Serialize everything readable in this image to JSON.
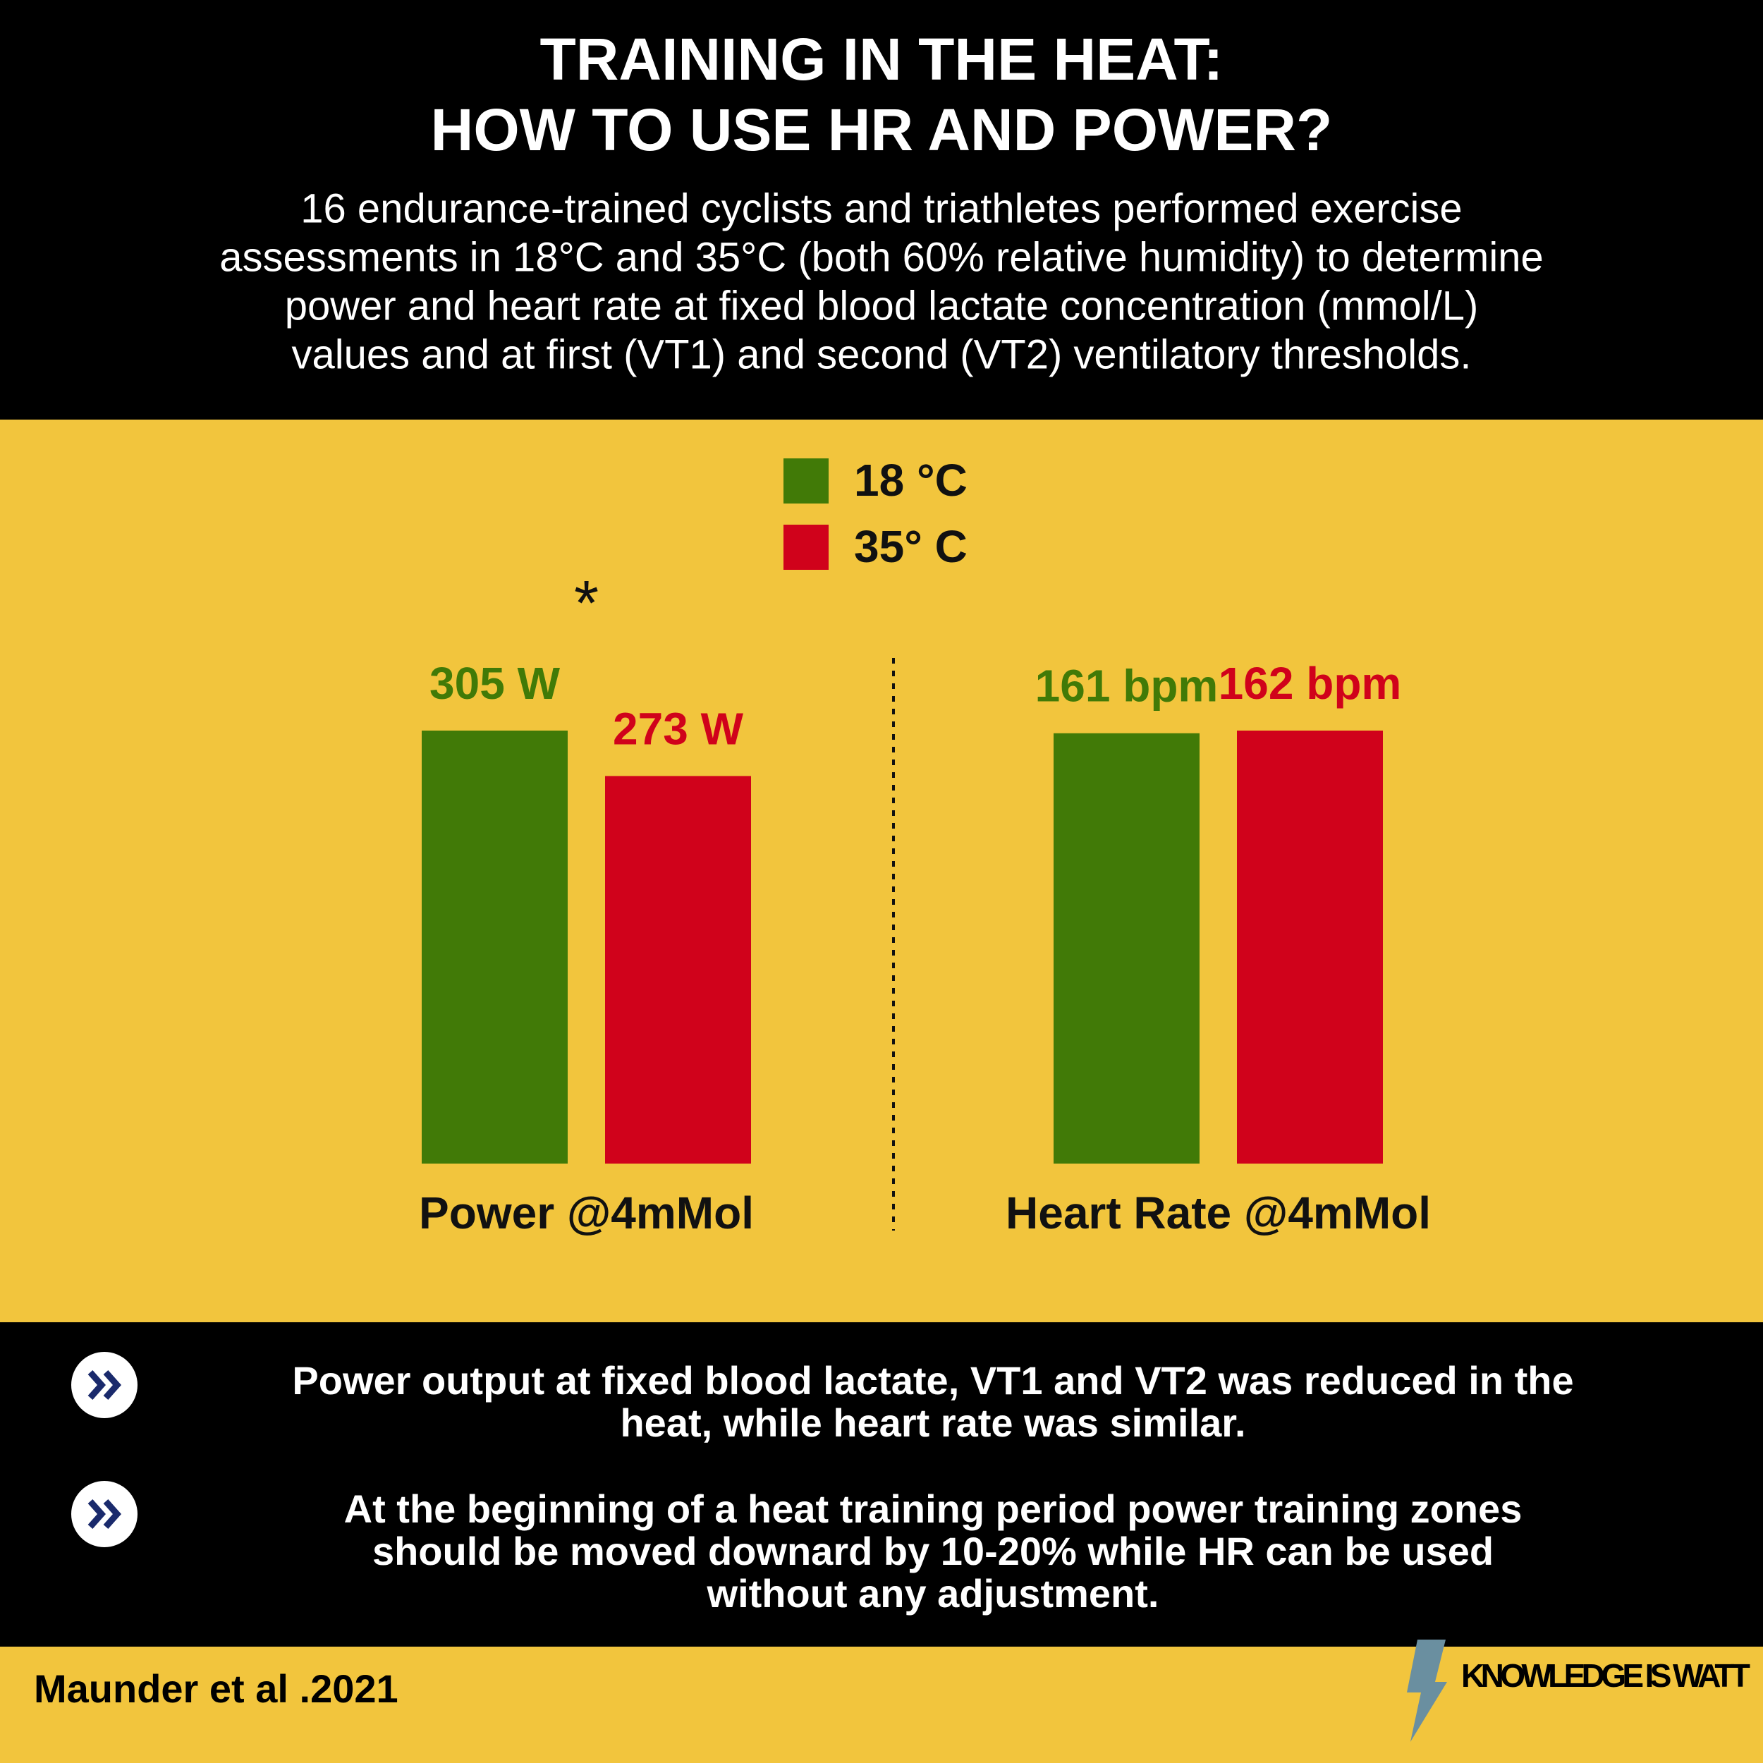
{
  "header": {
    "title": [
      "TRAINING IN THE HEAT:",
      "HOW TO USE HR AND POWER?"
    ],
    "subtitle": [
      "16 endurance-trained cyclists and triathletes performed exercise",
      "assessments in 18°C and 35°C (both 60% relative humidity) to determine",
      "power and heart rate at fixed blood lactate concentration (mmol/L)",
      "values and at first (VT1) and second (VT2) ventilatory thresholds."
    ]
  },
  "chart_data": [
    {
      "type": "bar",
      "categories": [
        "Power @4mMol"
      ],
      "annotation": "*",
      "series": [
        {
          "name": "18 °C",
          "color": "#417a07",
          "values": [
            305
          ],
          "value_labels": [
            "305 W"
          ]
        },
        {
          "name": "35° C",
          "color": "#d0021b",
          "values": [
            273
          ],
          "value_labels": [
            "273 W"
          ]
        }
      ]
    },
    {
      "type": "bar",
      "categories": [
        "Heart Rate @4mMol"
      ],
      "series": [
        {
          "color": "#417a07",
          "values": [
            161
          ],
          "value_labels": [
            "161 bpm"
          ]
        },
        {
          "color": "#d0021b",
          "values": [
            162
          ],
          "value_labels": [
            "162 bpm"
          ]
        }
      ]
    }
  ],
  "takeaways": [
    [
      "Power output at fixed blood lactate, VT1 and VT2 was reduced in the",
      "heat, while heart rate was similar."
    ],
    [
      "At the beginning of a heat training period power training zones",
      "should be moved downard by 10-20% while HR can be used",
      "without any adjustment."
    ]
  ],
  "footer": {
    "citation": "Maunder et al .2021",
    "brand": "KNOWLEDGE IS WATT"
  }
}
